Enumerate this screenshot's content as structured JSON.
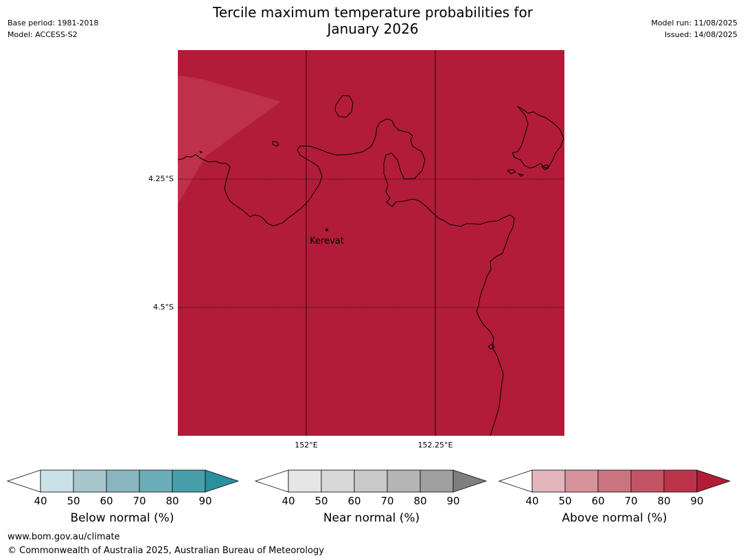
{
  "header": {
    "base_period": "Base period: 1981-2018",
    "model": "Model: ACCESS-S2",
    "title_line1": "Tercile maximum temperature probabilities for",
    "title_line2": "January 2026",
    "model_run": "Model run: 11/08/2025",
    "issued": "Issued: 14/08/2025"
  },
  "map": {
    "fill_color": "#b21c38",
    "light_fill_color": "#bd3149",
    "place_label": "Kerevat",
    "lat_labels": [
      "4.25°S",
      "4.5°S"
    ],
    "lon_labels": [
      "152°E",
      "152.25°E"
    ]
  },
  "legends": [
    {
      "title": "Below normal (%)",
      "ticks": [
        "40",
        "50",
        "60",
        "70",
        "80",
        "90"
      ],
      "colors": [
        "#ffffff",
        "#cae2e7",
        "#a8c7cd",
        "#8ab6c1",
        "#6badb9",
        "#479fac",
        "#2b8f9d"
      ]
    },
    {
      "title": "Near normal (%)",
      "ticks": [
        "40",
        "50",
        "60",
        "70",
        "80",
        "90"
      ],
      "colors": [
        "#ffffff",
        "#e6e6e6",
        "#d8d8d8",
        "#c9c9c9",
        "#b5b5b5",
        "#a0a0a0",
        "#7f7f7f"
      ]
    },
    {
      "title": "Above normal (%)",
      "ticks": [
        "40",
        "50",
        "60",
        "70",
        "80",
        "90"
      ],
      "colors": [
        "#ffffff",
        "#e2b6bc",
        "#d6939c",
        "#cb747f",
        "#c35466",
        "#bc344a",
        "#b21c38"
      ]
    }
  ],
  "footer": {
    "url": "www.bom.gov.au/climate",
    "copyright": "© Commonwealth of Australia 2025, Australian Bureau of Meteorology"
  }
}
